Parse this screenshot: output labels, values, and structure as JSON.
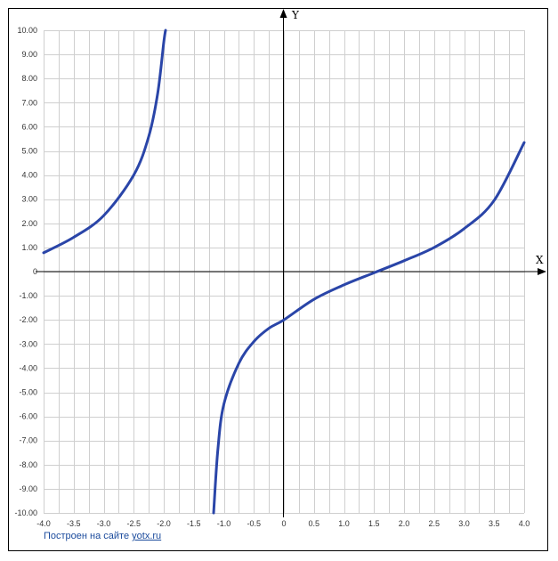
{
  "chart_data": {
    "type": "line",
    "title": "",
    "xlabel": "X",
    "ylabel": "Y",
    "xlim": [
      -4.0,
      4.0
    ],
    "ylim": [
      -10.0,
      10.0
    ],
    "grid": true,
    "x_ticks": [
      "-4.0",
      "-3.5",
      "-3.0",
      "-2.5",
      "-2.0",
      "-1.5",
      "-1.0",
      "-0.5",
      "0",
      "0.5",
      "1.0",
      "1.5",
      "2.0",
      "2.5",
      "3.0",
      "3.5",
      "4.0"
    ],
    "x_tick_values": [
      -4,
      -3.5,
      -3,
      -2.5,
      -2,
      -1.5,
      -1,
      -0.5,
      0,
      0.5,
      1,
      1.5,
      2,
      2.5,
      3,
      3.5,
      4
    ],
    "y_ticks": [
      "10.00",
      "9.00",
      "8.00",
      "7.00",
      "6.00",
      "5.00",
      "4.00",
      "3.00",
      "2.00",
      "1.00",
      "0",
      "-1.00",
      "-2.00",
      "-3.00",
      "-4.00",
      "-5.00",
      "-6.00",
      "-7.00",
      "-8.00",
      "-9.00",
      "-10.00"
    ],
    "y_tick_values": [
      10,
      9,
      8,
      7,
      6,
      5,
      4,
      3,
      2,
      1,
      0,
      -1,
      -2,
      -3,
      -4,
      -5,
      -6,
      -7,
      -8,
      -9,
      -10
    ],
    "series": [
      {
        "color": "#2a45a8",
        "segments": [
          {
            "x": [
              -4.0,
              -3.5,
              -3.0,
              -2.5,
              -2.25,
              -2.1,
              -2.0,
              -1.97
            ],
            "y": [
              0.78,
              1.42,
              2.32,
              4.0,
              5.6,
              7.4,
              9.5,
              10.0
            ]
          },
          {
            "x": [
              -1.17,
              -1.1,
              -1.0,
              -0.75,
              -0.5,
              -0.25,
              0.0,
              0.5,
              1.0,
              1.5,
              2.0,
              2.5,
              3.0,
              3.5,
              4.0
            ],
            "y": [
              -10.0,
              -7.4,
              -5.5,
              -3.8,
              -2.9,
              -2.35,
              -2.0,
              -1.15,
              -0.55,
              -0.05,
              0.45,
              1.0,
              1.78,
              2.95,
              5.35
            ]
          }
        ]
      }
    ]
  },
  "credit": {
    "text": "Построен на сайте",
    "link": "yotx.ru"
  }
}
